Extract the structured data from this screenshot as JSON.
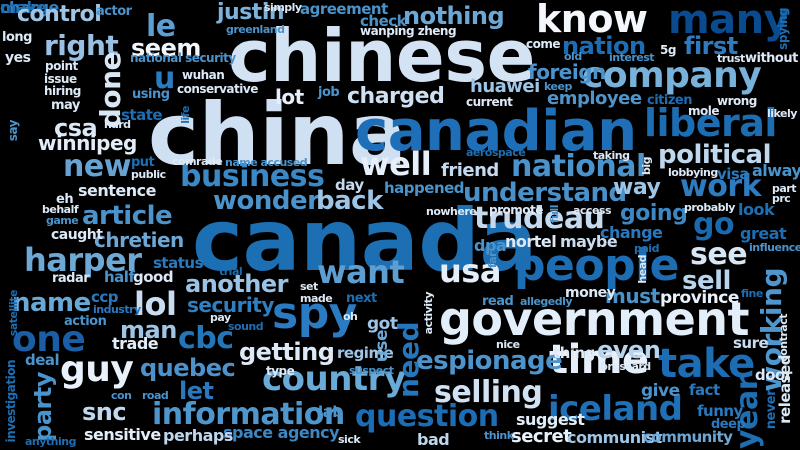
{
  "words": [
    {
      "text": "china",
      "color": "#cfe0f3"
    },
    {
      "text": "canada",
      "color": "#1c6fb3"
    },
    {
      "text": "chinese",
      "color": "#d3e3f4"
    },
    {
      "text": "canadian",
      "color": "#1e6fb8"
    },
    {
      "text": "government",
      "color": "#e2eef9"
    },
    {
      "text": "people",
      "color": "#1d6db5"
    },
    {
      "text": "spy",
      "color": "#2a7bc1"
    },
    {
      "text": "know",
      "color": "#f4f8fd"
    },
    {
      "text": "company",
      "color": "#78b2da"
    },
    {
      "text": "liberal",
      "color": "#1d6db2"
    },
    {
      "text": "national",
      "color": "#4a93cd"
    },
    {
      "text": "trudeau",
      "color": "#c6daef"
    },
    {
      "text": "iceland",
      "color": "#1f70b6"
    },
    {
      "text": "country",
      "color": "#6aaad6"
    },
    {
      "text": "time",
      "color": "#e7f0fa"
    },
    {
      "text": "business",
      "color": "#3b88c6"
    },
    {
      "text": "many",
      "color": "#0a4a8f"
    },
    {
      "text": "take",
      "color": "#1d6db5"
    },
    {
      "text": "usa",
      "color": "#e4eef9"
    },
    {
      "text": "information",
      "color": "#4e96cc"
    },
    {
      "text": "charge",
      "color": "#2f7fc1"
    },
    {
      "text": "make",
      "color": "#1e6eb3"
    },
    {
      "text": "political",
      "color": "#bfd8ee"
    },
    {
      "text": "cbc",
      "color": "#2575b9"
    },
    {
      "text": "guy",
      "color": "#e9f1fb"
    },
    {
      "text": "lol",
      "color": "#c9dcf0"
    },
    {
      "text": "question",
      "color": "#1d6db5"
    },
    {
      "text": "work",
      "color": "#2d7bc0"
    },
    {
      "text": "want",
      "color": "#5e9fd2"
    },
    {
      "text": "well",
      "color": "#e7f0fa"
    },
    {
      "text": "go",
      "color": "#1a68ae"
    },
    {
      "text": "see",
      "color": "#d6e6f5"
    },
    {
      "text": "name",
      "color": "#6aa8d6"
    },
    {
      "text": "one",
      "color": "#1a5fa5"
    },
    {
      "text": "espionage",
      "color": "#4d94cc"
    },
    {
      "text": "selling",
      "color": "#d2e2f3"
    },
    {
      "text": "harper",
      "color": "#6ea9d6"
    },
    {
      "text": "article",
      "color": "#4b93cb"
    },
    {
      "text": "new",
      "color": "#66a3d3"
    },
    {
      "text": "understand",
      "color": "#4a90c9"
    },
    {
      "text": "quebec",
      "color": "#4d92cc"
    },
    {
      "text": "charged",
      "color": "#cfe0f3"
    },
    {
      "text": "another",
      "color": "#9ac3e5"
    },
    {
      "text": "need",
      "color": "#2576bb"
    },
    {
      "text": "working",
      "color": "#4e96cd"
    },
    {
      "text": "first",
      "color": "#2e7cc0"
    },
    {
      "text": "nation",
      "color": "#1d6db5"
    },
    {
      "text": "right",
      "color": "#9ac1e3"
    },
    {
      "text": "nothing",
      "color": "#6ca8d6"
    },
    {
      "text": "done",
      "color": "#d9e7f5"
    },
    {
      "text": "wonder",
      "color": "#4c93cb"
    },
    {
      "text": "chretien",
      "color": "#6ea7d4"
    },
    {
      "text": "snc",
      "color": "#c0d7ee"
    },
    {
      "text": "year",
      "color": "#1e6eb3"
    },
    {
      "text": "back",
      "color": "#9ec5e6"
    },
    {
      "text": "justin",
      "color": "#7cb3dc"
    },
    {
      "text": "security",
      "color": "#2f7fc1"
    },
    {
      "text": "man",
      "color": "#9ec5e6"
    },
    {
      "text": "getting",
      "color": "#dde9f6"
    },
    {
      "text": "sell",
      "color": "#b9d5ed"
    },
    {
      "text": "foreign",
      "color": "#4c93cb"
    },
    {
      "text": "going",
      "color": "#3d88c4"
    },
    {
      "text": "even",
      "color": "#b8d3ec"
    },
    {
      "text": "le",
      "color": "#5e9fd2"
    },
    {
      "text": "u",
      "color": "#2a7bc1"
    },
    {
      "text": "seem",
      "color": "#f0f6fc"
    },
    {
      "text": "employee",
      "color": "#4f95cc"
    },
    {
      "text": "csa",
      "color": "#dbe8f5"
    },
    {
      "text": "control",
      "color": "#9ec5e6"
    },
    {
      "text": "winnipeg",
      "color": "#e2edf8"
    },
    {
      "text": "let",
      "color": "#2a79be"
    },
    {
      "text": "party",
      "color": "#4b93cb"
    },
    {
      "text": "space agency",
      "color": "#3b86c3"
    },
    {
      "text": "lot",
      "color": "#e6eff9"
    },
    {
      "text": "way",
      "color": "#9ec5e6"
    },
    {
      "text": "friend",
      "color": "#c6daef"
    },
    {
      "text": "sentence",
      "color": "#dde9f6"
    },
    {
      "text": "huawei",
      "color": "#9ec5e6"
    },
    {
      "text": "sensitive",
      "color": "#e4eef9"
    },
    {
      "text": "perhaps",
      "color": "#bed6ed"
    },
    {
      "text": "secret",
      "color": "#e9f1fb"
    },
    {
      "text": "communist",
      "color": "#9ec5e6"
    },
    {
      "text": "community",
      "color": "#6ea7d4"
    },
    {
      "text": "suggest",
      "color": "#e2edf8"
    },
    {
      "text": "bad",
      "color": "#bed6ed"
    },
    {
      "text": "must",
      "color": "#4b93cb"
    },
    {
      "text": "province",
      "color": "#e9f1fb"
    },
    {
      "text": "money",
      "color": "#dde9f6"
    },
    {
      "text": "good",
      "color": "#dde9f6"
    },
    {
      "text": "half",
      "color": "#4b93cb"
    },
    {
      "text": "status",
      "color": "#2a79be"
    },
    {
      "text": "trade",
      "color": "#e4eef9"
    },
    {
      "text": "regime",
      "color": "#9ec5e6"
    },
    {
      "text": "got",
      "color": "#9ec5e6"
    },
    {
      "text": "use",
      "color": "#6aa8d6"
    },
    {
      "text": "thing",
      "color": "#dde9f6"
    },
    {
      "text": "give",
      "color": "#4b93cb"
    },
    {
      "text": "fact",
      "color": "#2a79be"
    },
    {
      "text": "door",
      "color": "#dde9f6"
    },
    {
      "text": "sure",
      "color": "#c9dcf0"
    },
    {
      "text": "day",
      "color": "#c6daef"
    },
    {
      "text": "happened",
      "color": "#4b93cb"
    },
    {
      "text": "maybe",
      "color": "#c9dcf0"
    },
    {
      "text": "nortel",
      "color": "#dde9f6"
    },
    {
      "text": "dpa",
      "color": "#4b93cb"
    },
    {
      "text": "change",
      "color": "#2a79be"
    },
    {
      "text": "great",
      "color": "#1e6eb3"
    },
    {
      "text": "look",
      "color": "#1e6eb3"
    },
    {
      "text": "always",
      "color": "#4b93cb"
    },
    {
      "text": "visa",
      "color": "#2a79be"
    },
    {
      "text": "probably",
      "color": "#dde9f6"
    },
    {
      "text": "ccp",
      "color": "#2a79be"
    },
    {
      "text": "industry",
      "color": "#2a79be"
    },
    {
      "text": "action",
      "color": "#4b93cb"
    },
    {
      "text": "pay",
      "color": "#dde9f6"
    },
    {
      "text": "caught",
      "color": "#dde9f6"
    },
    {
      "text": "radar",
      "color": "#dde9f6"
    },
    {
      "text": "eh",
      "color": "#dde9f6"
    },
    {
      "text": "behalf",
      "color": "#dde9f6"
    },
    {
      "text": "game",
      "color": "#4b93cb"
    },
    {
      "text": "deal",
      "color": "#4b93cb"
    },
    {
      "text": "investigation",
      "color": "#1e6eb3"
    },
    {
      "text": "anything",
      "color": "#1e6eb3"
    },
    {
      "text": "con",
      "color": "#4b93cb"
    },
    {
      "text": "road",
      "color": "#4b93cb"
    },
    {
      "text": "oh",
      "color": "#dde9f6"
    },
    {
      "text": "lab",
      "color": "#4b93cb"
    },
    {
      "text": "sick",
      "color": "#dde9f6"
    },
    {
      "text": "type",
      "color": "#dde9f6"
    },
    {
      "text": "suspect",
      "color": "#4b93cb"
    },
    {
      "text": "nice",
      "color": "#dde9f6"
    },
    {
      "text": "brossard",
      "color": "#dde9f6"
    },
    {
      "text": "released",
      "color": "#dde9f6"
    },
    {
      "text": "never",
      "color": "#1e6eb3"
    },
    {
      "text": "funny",
      "color": "#2a79be"
    },
    {
      "text": "deep",
      "color": "#2a79be"
    },
    {
      "text": "think",
      "color": "#4b93cb"
    },
    {
      "text": "agreement",
      "color": "#4b93cb"
    },
    {
      "text": "actor",
      "color": "#4b93cb"
    },
    {
      "text": "simply",
      "color": "#dde9f6"
    },
    {
      "text": "greenland",
      "color": "#4b93cb"
    },
    {
      "text": "check",
      "color": "#4b93cb"
    },
    {
      "text": "wanping zheng",
      "color": "#dde9f6"
    },
    {
      "text": "spying",
      "color": "#1e6eb3"
    },
    {
      "text": "come",
      "color": "#dde9f6"
    },
    {
      "text": "5g",
      "color": "#dde9f6"
    },
    {
      "text": "old",
      "color": "#4b93cb"
    },
    {
      "text": "interest",
      "color": "#4b93cb"
    },
    {
      "text": "trust",
      "color": "#dde9f6"
    },
    {
      "text": "without",
      "color": "#dde9f6"
    },
    {
      "text": "long",
      "color": "#dde9f6"
    },
    {
      "text": "yes",
      "color": "#dde9f6"
    },
    {
      "text": "point",
      "color": "#dde9f6"
    },
    {
      "text": "issue",
      "color": "#dde9f6"
    },
    {
      "text": "hiring",
      "color": "#dde9f6"
    },
    {
      "text": "may",
      "color": "#dde9f6"
    },
    {
      "text": "national security",
      "color": "#4b93cb"
    },
    {
      "text": "wuhan",
      "color": "#dde9f6"
    },
    {
      "text": "conservative",
      "color": "#dde9f6"
    },
    {
      "text": "using",
      "color": "#4b93cb"
    },
    {
      "text": "job",
      "color": "#4b93cb"
    },
    {
      "text": "keep",
      "color": "#4b93cb"
    },
    {
      "text": "current",
      "color": "#dde9f6"
    },
    {
      "text": "citizen",
      "color": "#1e6eb3"
    },
    {
      "text": "mole",
      "color": "#dde9f6"
    },
    {
      "text": "wrong",
      "color": "#dde9f6"
    },
    {
      "text": "likely",
      "color": "#dde9f6"
    },
    {
      "text": "hard",
      "color": "#dde9f6"
    },
    {
      "text": "state",
      "color": "#1e6eb3"
    },
    {
      "text": "life",
      "color": "#1e6eb3"
    },
    {
      "text": "comrade",
      "color": "#dde9f6"
    },
    {
      "text": "name accused",
      "color": "#4b93cb"
    },
    {
      "text": "aerospace",
      "color": "#1e6eb3"
    },
    {
      "text": "taking",
      "color": "#dde9f6"
    },
    {
      "text": "big",
      "color": "#dde9f6"
    },
    {
      "text": "lobbying",
      "color": "#dde9f6"
    },
    {
      "text": "part",
      "color": "#dde9f6"
    },
    {
      "text": "prc",
      "color": "#dde9f6"
    },
    {
      "text": "put",
      "color": "#1e6eb3"
    },
    {
      "text": "public",
      "color": "#dde9f6"
    },
    {
      "text": "say",
      "color": "#4b93cb"
    },
    {
      "text": "promote",
      "color": "#dde9f6"
    },
    {
      "text": "full",
      "color": "#4b93cb"
    },
    {
      "text": "access",
      "color": "#dde9f6"
    },
    {
      "text": "nowhere",
      "color": "#dde9f6"
    },
    {
      "text": "far",
      "color": "#4b93cb"
    },
    {
      "text": "paid",
      "color": "#1e6eb3"
    },
    {
      "text": "head",
      "color": "#dde9f6"
    },
    {
      "text": "influence",
      "color": "#4b93cb"
    },
    {
      "text": "trial",
      "color": "#1e6eb3"
    },
    {
      "text": "set",
      "color": "#dde9f6"
    },
    {
      "text": "made",
      "color": "#dde9f6"
    },
    {
      "text": "next",
      "color": "#1e6eb3"
    },
    {
      "text": "read",
      "color": "#4b93cb"
    },
    {
      "text": "allegedly",
      "color": "#4b93cb"
    },
    {
      "text": "activity",
      "color": "#dde9f6"
    },
    {
      "text": "sound",
      "color": "#1e6eb3"
    },
    {
      "text": "fine",
      "color": "#1e6eb3"
    },
    {
      "text": "contract",
      "color": "#dde9f6"
    },
    {
      "text": "satellite",
      "color": "#1e6eb3"
    }
  ]
}
